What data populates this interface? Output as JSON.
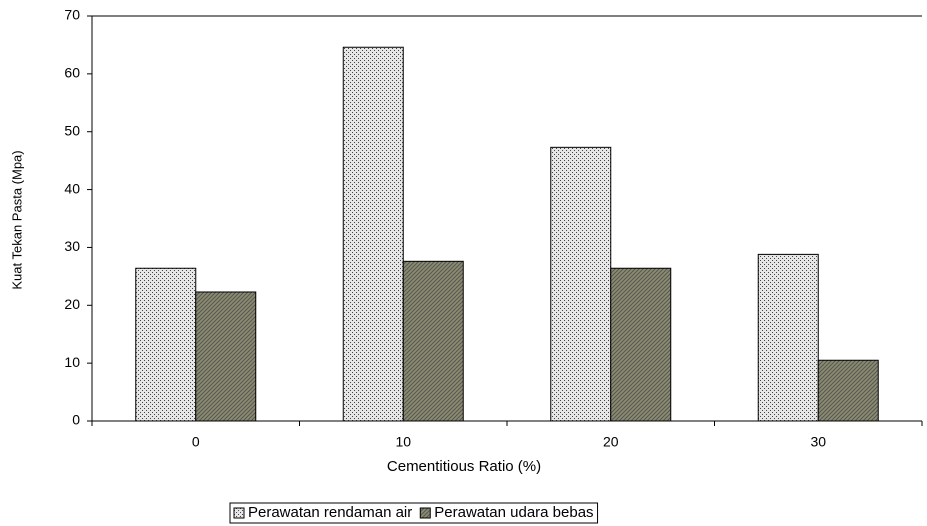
{
  "chart_data": {
    "type": "bar",
    "xlabel": "Cementitious Ratio (%)",
    "ylabel": "Kuat Tekan Pasta (Mpa)",
    "categories": [
      "0",
      "10",
      "20",
      "30"
    ],
    "series": [
      {
        "name": "Perawatan rendaman air",
        "color": "#e6e6e6",
        "values": [
          26.4,
          64.6,
          47.3,
          28.8
        ]
      },
      {
        "name": "Perawatan udara bebas",
        "color": "#8c8c6e",
        "values": [
          22.3,
          27.6,
          26.4,
          10.5
        ]
      }
    ],
    "ylim": [
      0,
      70
    ],
    "yticks": [
      0,
      10,
      20,
      30,
      40,
      50,
      60,
      70
    ],
    "legend": "bottom"
  }
}
